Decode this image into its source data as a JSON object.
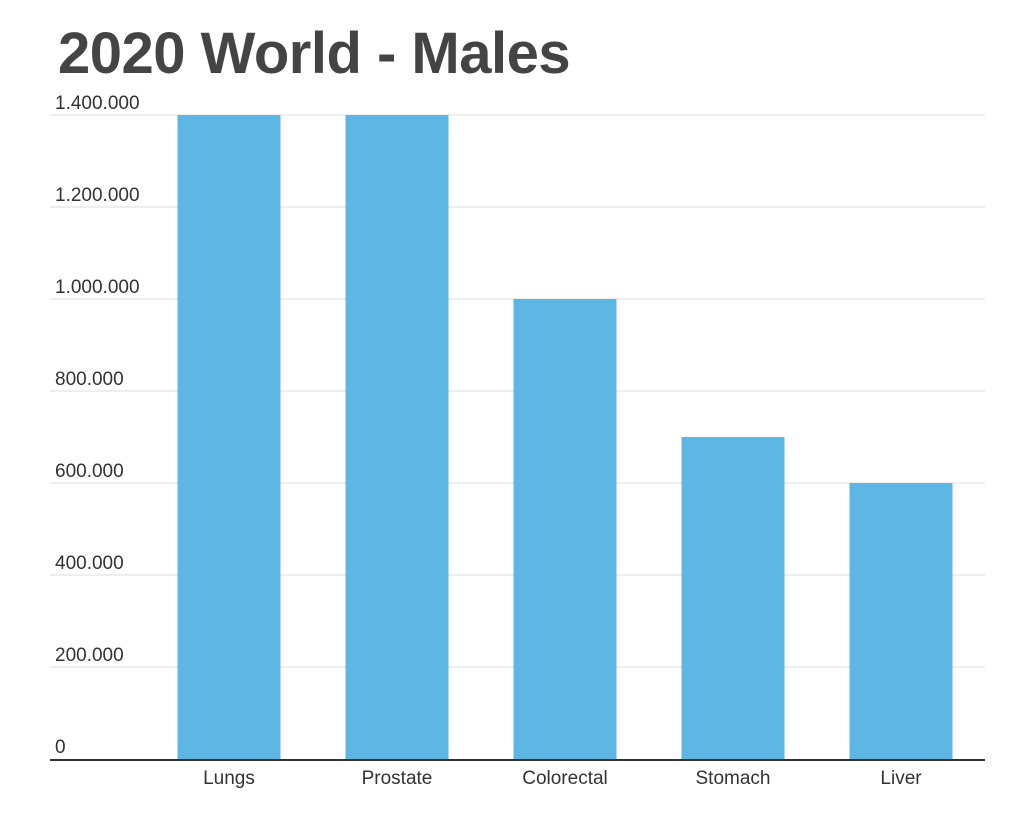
{
  "colors": {
    "bar": "#5EB6E4",
    "gridline": "#DDDDDD",
    "axis": "#333333",
    "title": "#444444",
    "text": "#333333",
    "background": "#FFFFFF"
  },
  "chart_data": {
    "type": "bar",
    "title": "2020 World - Males",
    "xlabel": "",
    "ylabel": "",
    "categories": [
      "Lungs",
      "Prostate",
      "Colorectal",
      "Stomach",
      "Liver"
    ],
    "values": [
      1400000,
      1400000,
      1000000,
      700000,
      600000
    ],
    "ylim": [
      0,
      1400000
    ],
    "y_ticks": [
      0,
      200000,
      400000,
      600000,
      800000,
      1000000,
      1200000,
      1400000
    ],
    "y_tick_labels": [
      "0",
      "200.000",
      "400.000",
      "600.000",
      "800.000",
      "1.000.000",
      "1.200.000",
      "1.400.000"
    ],
    "grid": true,
    "legend": "none"
  }
}
